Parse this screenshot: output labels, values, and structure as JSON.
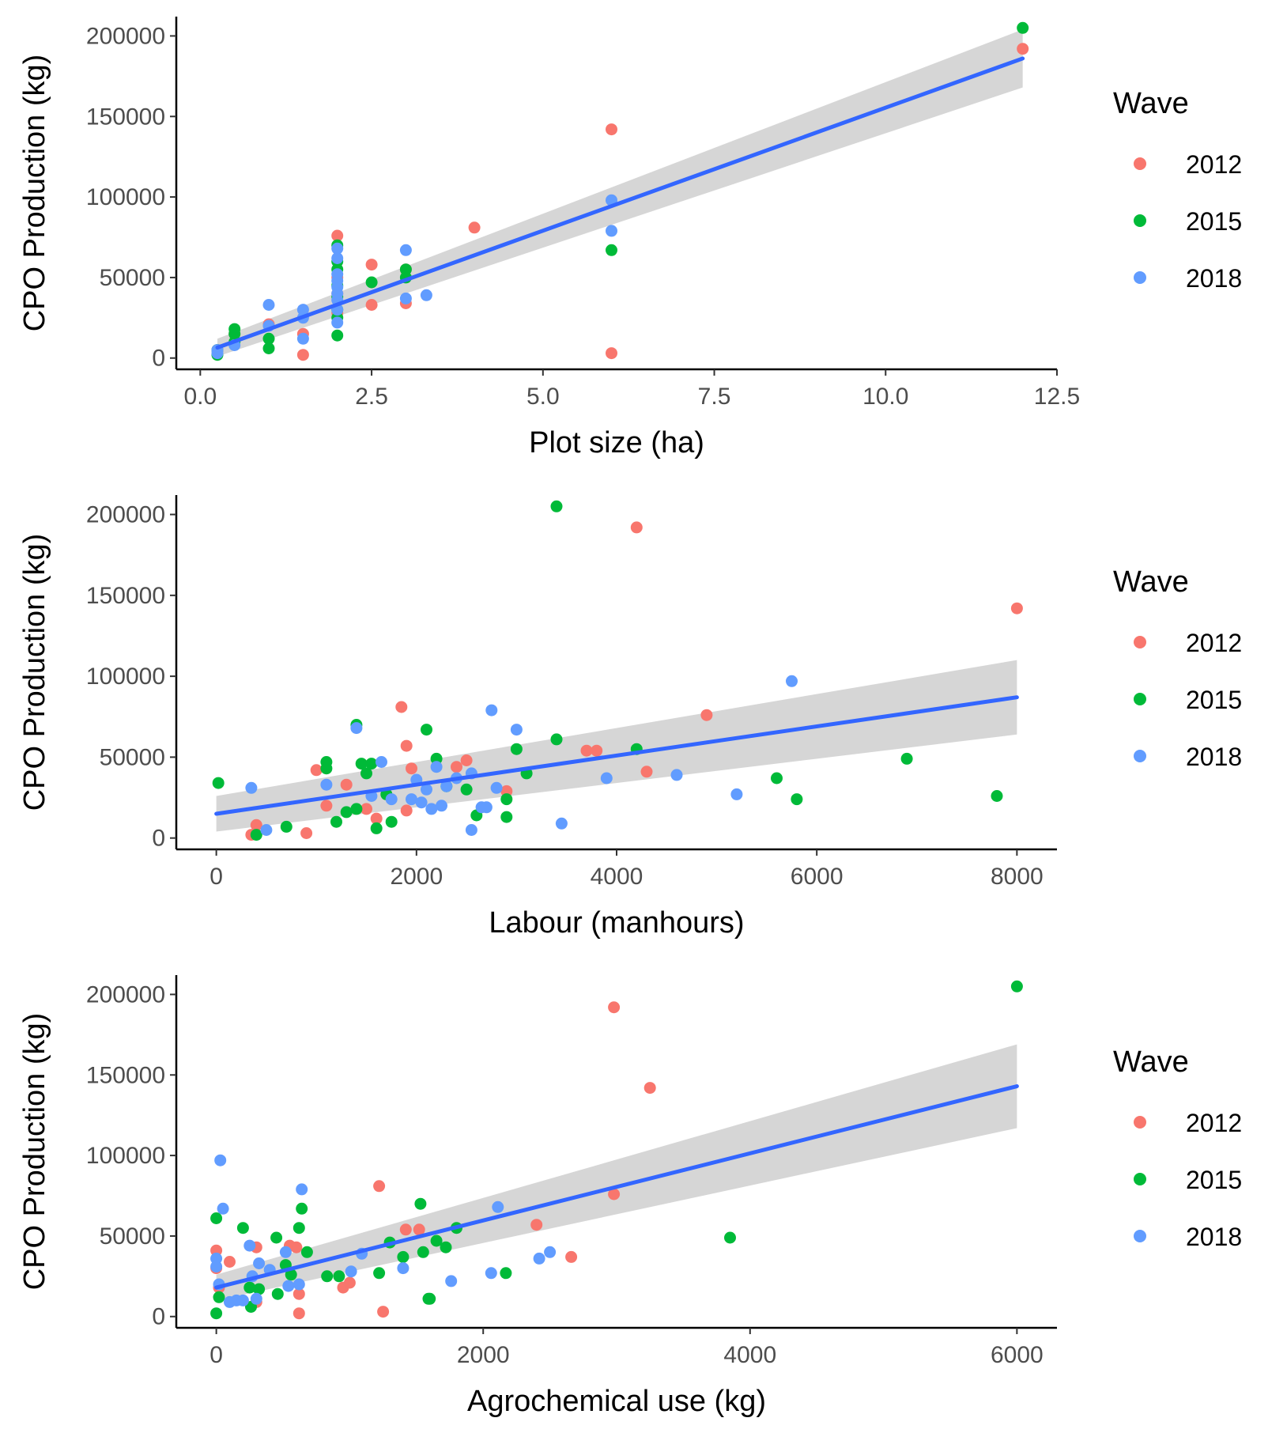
{
  "legend": {
    "title": "Wave",
    "items": [
      {
        "label": "2012",
        "color": "#F8766D"
      },
      {
        "label": "2015",
        "color": "#00BA38"
      },
      {
        "label": "2018",
        "color": "#619CFF"
      }
    ]
  },
  "style": {
    "fit_line_color": "#3366FF",
    "ribbon_color": "#cccccc"
  },
  "chart_data": [
    {
      "type": "scatter",
      "title": "",
      "xlabel": "Plot size (ha)",
      "ylabel": "CPO Production (kg)",
      "xlim": [
        -0.35,
        12.5
      ],
      "ylim": [
        -7000,
        212000
      ],
      "x_ticks": [
        0,
        2.5,
        5,
        7.5,
        10,
        12.5
      ],
      "x_tick_labels": [
        "0.0",
        "2.5",
        "5.0",
        "7.5",
        "10.0",
        "12.5"
      ],
      "y_ticks": [
        0,
        50000,
        100000,
        150000,
        200000
      ],
      "y_tick_labels": [
        "0",
        "50000",
        "100000",
        "150000",
        "200000"
      ],
      "grid": false,
      "legend_position": "right",
      "fit": {
        "x": [
          0.25,
          12
        ],
        "y": [
          6500,
          186000
        ],
        "ci_lower": [
          1000,
          168000
        ],
        "ci_upper": [
          12000,
          204000
        ]
      },
      "series": [
        {
          "name": "2012",
          "x": [
            12,
            6,
            6,
            4,
            2,
            2,
            2.5,
            2.5,
            3,
            1,
            1.5,
            1.5,
            2,
            0.5,
            0.25,
            2,
            3
          ],
          "y": [
            192000,
            142000,
            3000,
            81000,
            76000,
            50000,
            58000,
            33000,
            34000,
            21000,
            15000,
            2000,
            40000,
            15000,
            5000,
            28000,
            55000
          ]
        },
        {
          "name": "2015",
          "x": [
            12,
            6,
            2,
            2,
            2,
            2,
            2,
            2,
            2.5,
            3,
            3,
            0.5,
            0.5,
            0.5,
            0.25,
            0.25,
            1,
            1,
            2,
            2
          ],
          "y": [
            205000,
            67000,
            70000,
            60000,
            55000,
            45000,
            38000,
            30000,
            47000,
            55000,
            50000,
            18000,
            15000,
            10000,
            2000,
            5000,
            6000,
            12000,
            25000,
            14000
          ]
        },
        {
          "name": "2018",
          "x": [
            6,
            6,
            3,
            3,
            3.3,
            2,
            2,
            2,
            2,
            2,
            2,
            2,
            2,
            2,
            1,
            1,
            1.5,
            1.5,
            1.5,
            0.5,
            0.25,
            0.25
          ],
          "y": [
            98000,
            79000,
            67000,
            37000,
            39000,
            68000,
            62000,
            52000,
            48000,
            44000,
            40000,
            36000,
            30000,
            22000,
            33000,
            20000,
            30000,
            25000,
            12000,
            8000,
            5000,
            3000
          ]
        }
      ]
    },
    {
      "type": "scatter",
      "title": "",
      "xlabel": "Labour (manhours)",
      "ylabel": "CPO Production (kg)",
      "xlim": [
        -400,
        8400
      ],
      "ylim": [
        -7000,
        212000
      ],
      "x_ticks": [
        0,
        2000,
        4000,
        6000,
        8000
      ],
      "x_tick_labels": [
        "0",
        "2000",
        "4000",
        "6000",
        "8000"
      ],
      "y_ticks": [
        0,
        50000,
        100000,
        150000,
        200000
      ],
      "y_tick_labels": [
        "0",
        "50000",
        "100000",
        "150000",
        "200000"
      ],
      "grid": false,
      "legend_position": "right",
      "fit": {
        "x": [
          0,
          8000
        ],
        "y": [
          15000,
          87000
        ],
        "ci_lower": [
          4000,
          64000
        ],
        "ci_upper": [
          26000,
          110000
        ]
      },
      "series": [
        {
          "name": "2012",
          "x": [
            4200,
            8000,
            4900,
            1850,
            1900,
            1950,
            2500,
            2400,
            1300,
            1000,
            1100,
            1500,
            1600,
            1900,
            900,
            400,
            350,
            3700,
            3800,
            4300,
            2900
          ],
          "y": [
            192000,
            142000,
            76000,
            81000,
            57000,
            43000,
            48000,
            44000,
            33000,
            42000,
            20000,
            18000,
            12000,
            17000,
            3000,
            8000,
            2000,
            54000,
            54000,
            41000,
            29000
          ]
        },
        {
          "name": "2015",
          "x": [
            3400,
            6900,
            7800,
            5800,
            5600,
            3400,
            4200,
            1400,
            2100,
            1450,
            1100,
            1100,
            1500,
            1550,
            1700,
            1400,
            1300,
            1200,
            1750,
            1600,
            2200,
            2300,
            2500,
            2600,
            2900,
            2900,
            3000,
            3100,
            700,
            400,
            20
          ],
          "y": [
            205000,
            49000,
            26000,
            24000,
            37000,
            61000,
            55000,
            70000,
            67000,
            46000,
            43000,
            47000,
            40000,
            46000,
            27000,
            18000,
            16000,
            10000,
            10000,
            6000,
            49000,
            32000,
            30000,
            14000,
            24000,
            13000,
            55000,
            40000,
            7000,
            2000,
            34000
          ]
        },
        {
          "name": "2018",
          "x": [
            5750,
            2750,
            3000,
            1400,
            1650,
            2200,
            2800,
            3900,
            4600,
            5200,
            3450,
            2000,
            2100,
            2250,
            2300,
            2400,
            2550,
            2650,
            2700,
            1100,
            1550,
            1750,
            1950,
            2150,
            500,
            350,
            2550,
            2050
          ],
          "y": [
            97000,
            79000,
            67000,
            68000,
            47000,
            44000,
            31000,
            37000,
            39000,
            27000,
            9000,
            36000,
            30000,
            20000,
            32000,
            37000,
            40000,
            19000,
            19000,
            33000,
            26000,
            24000,
            24000,
            18000,
            5000,
            31000,
            5000,
            22000
          ]
        }
      ]
    },
    {
      "type": "scatter",
      "title": "",
      "xlabel": "Agrochemical use (kg)",
      "ylabel": "CPO Production (kg)",
      "xlim": [
        -300,
        6300
      ],
      "ylim": [
        -7000,
        212000
      ],
      "x_ticks": [
        0,
        2000,
        4000,
        6000
      ],
      "x_tick_labels": [
        "0",
        "2000",
        "4000",
        "6000"
      ],
      "y_ticks": [
        0,
        50000,
        100000,
        150000,
        200000
      ],
      "y_tick_labels": [
        "0",
        "50000",
        "100000",
        "150000",
        "200000"
      ],
      "grid": false,
      "legend_position": "right",
      "fit": {
        "x": [
          0,
          6000
        ],
        "y": [
          18000,
          143000
        ],
        "ci_lower": [
          10000,
          117000
        ],
        "ci_upper": [
          26000,
          169000
        ]
      },
      "series": [
        {
          "name": "2012",
          "x": [
            2980,
            3250,
            2980,
            1220,
            2400,
            2660,
            1420,
            1520,
            950,
            1000,
            1250,
            0,
            0,
            100,
            300,
            300,
            550,
            600,
            620,
            620,
            20
          ],
          "y": [
            192000,
            142000,
            76000,
            81000,
            57000,
            37000,
            54000,
            54000,
            18000,
            21000,
            3000,
            41000,
            30000,
            34000,
            43000,
            9000,
            44000,
            43000,
            14000,
            2000,
            18000
          ]
        },
        {
          "name": "2015",
          "x": [
            6000,
            3850,
            1530,
            1650,
            1800,
            1720,
            1550,
            1600,
            1400,
            1300,
            1220,
            2170,
            830,
            920,
            1590,
            620,
            640,
            680,
            0,
            20,
            200,
            450,
            520,
            560,
            250,
            320,
            460,
            260,
            0
          ],
          "y": [
            205000,
            49000,
            70000,
            47000,
            55000,
            43000,
            40000,
            11000,
            37000,
            46000,
            27000,
            27000,
            25000,
            25000,
            11000,
            55000,
            67000,
            40000,
            61000,
            12000,
            55000,
            49000,
            32000,
            26000,
            18000,
            17000,
            14000,
            6000,
            2000
          ]
        },
        {
          "name": "2018",
          "x": [
            30,
            50,
            640,
            2110,
            2500,
            2420,
            2060,
            1400,
            1760,
            1010,
            1090,
            520,
            0,
            0,
            20,
            250,
            270,
            320,
            400,
            100,
            150,
            200,
            300,
            540,
            620
          ],
          "y": [
            97000,
            67000,
            79000,
            68000,
            40000,
            36000,
            27000,
            30000,
            22000,
            28000,
            39000,
            40000,
            36000,
            31000,
            20000,
            44000,
            25000,
            33000,
            29000,
            9000,
            10000,
            10000,
            11000,
            19000,
            20000
          ]
        }
      ]
    }
  ]
}
